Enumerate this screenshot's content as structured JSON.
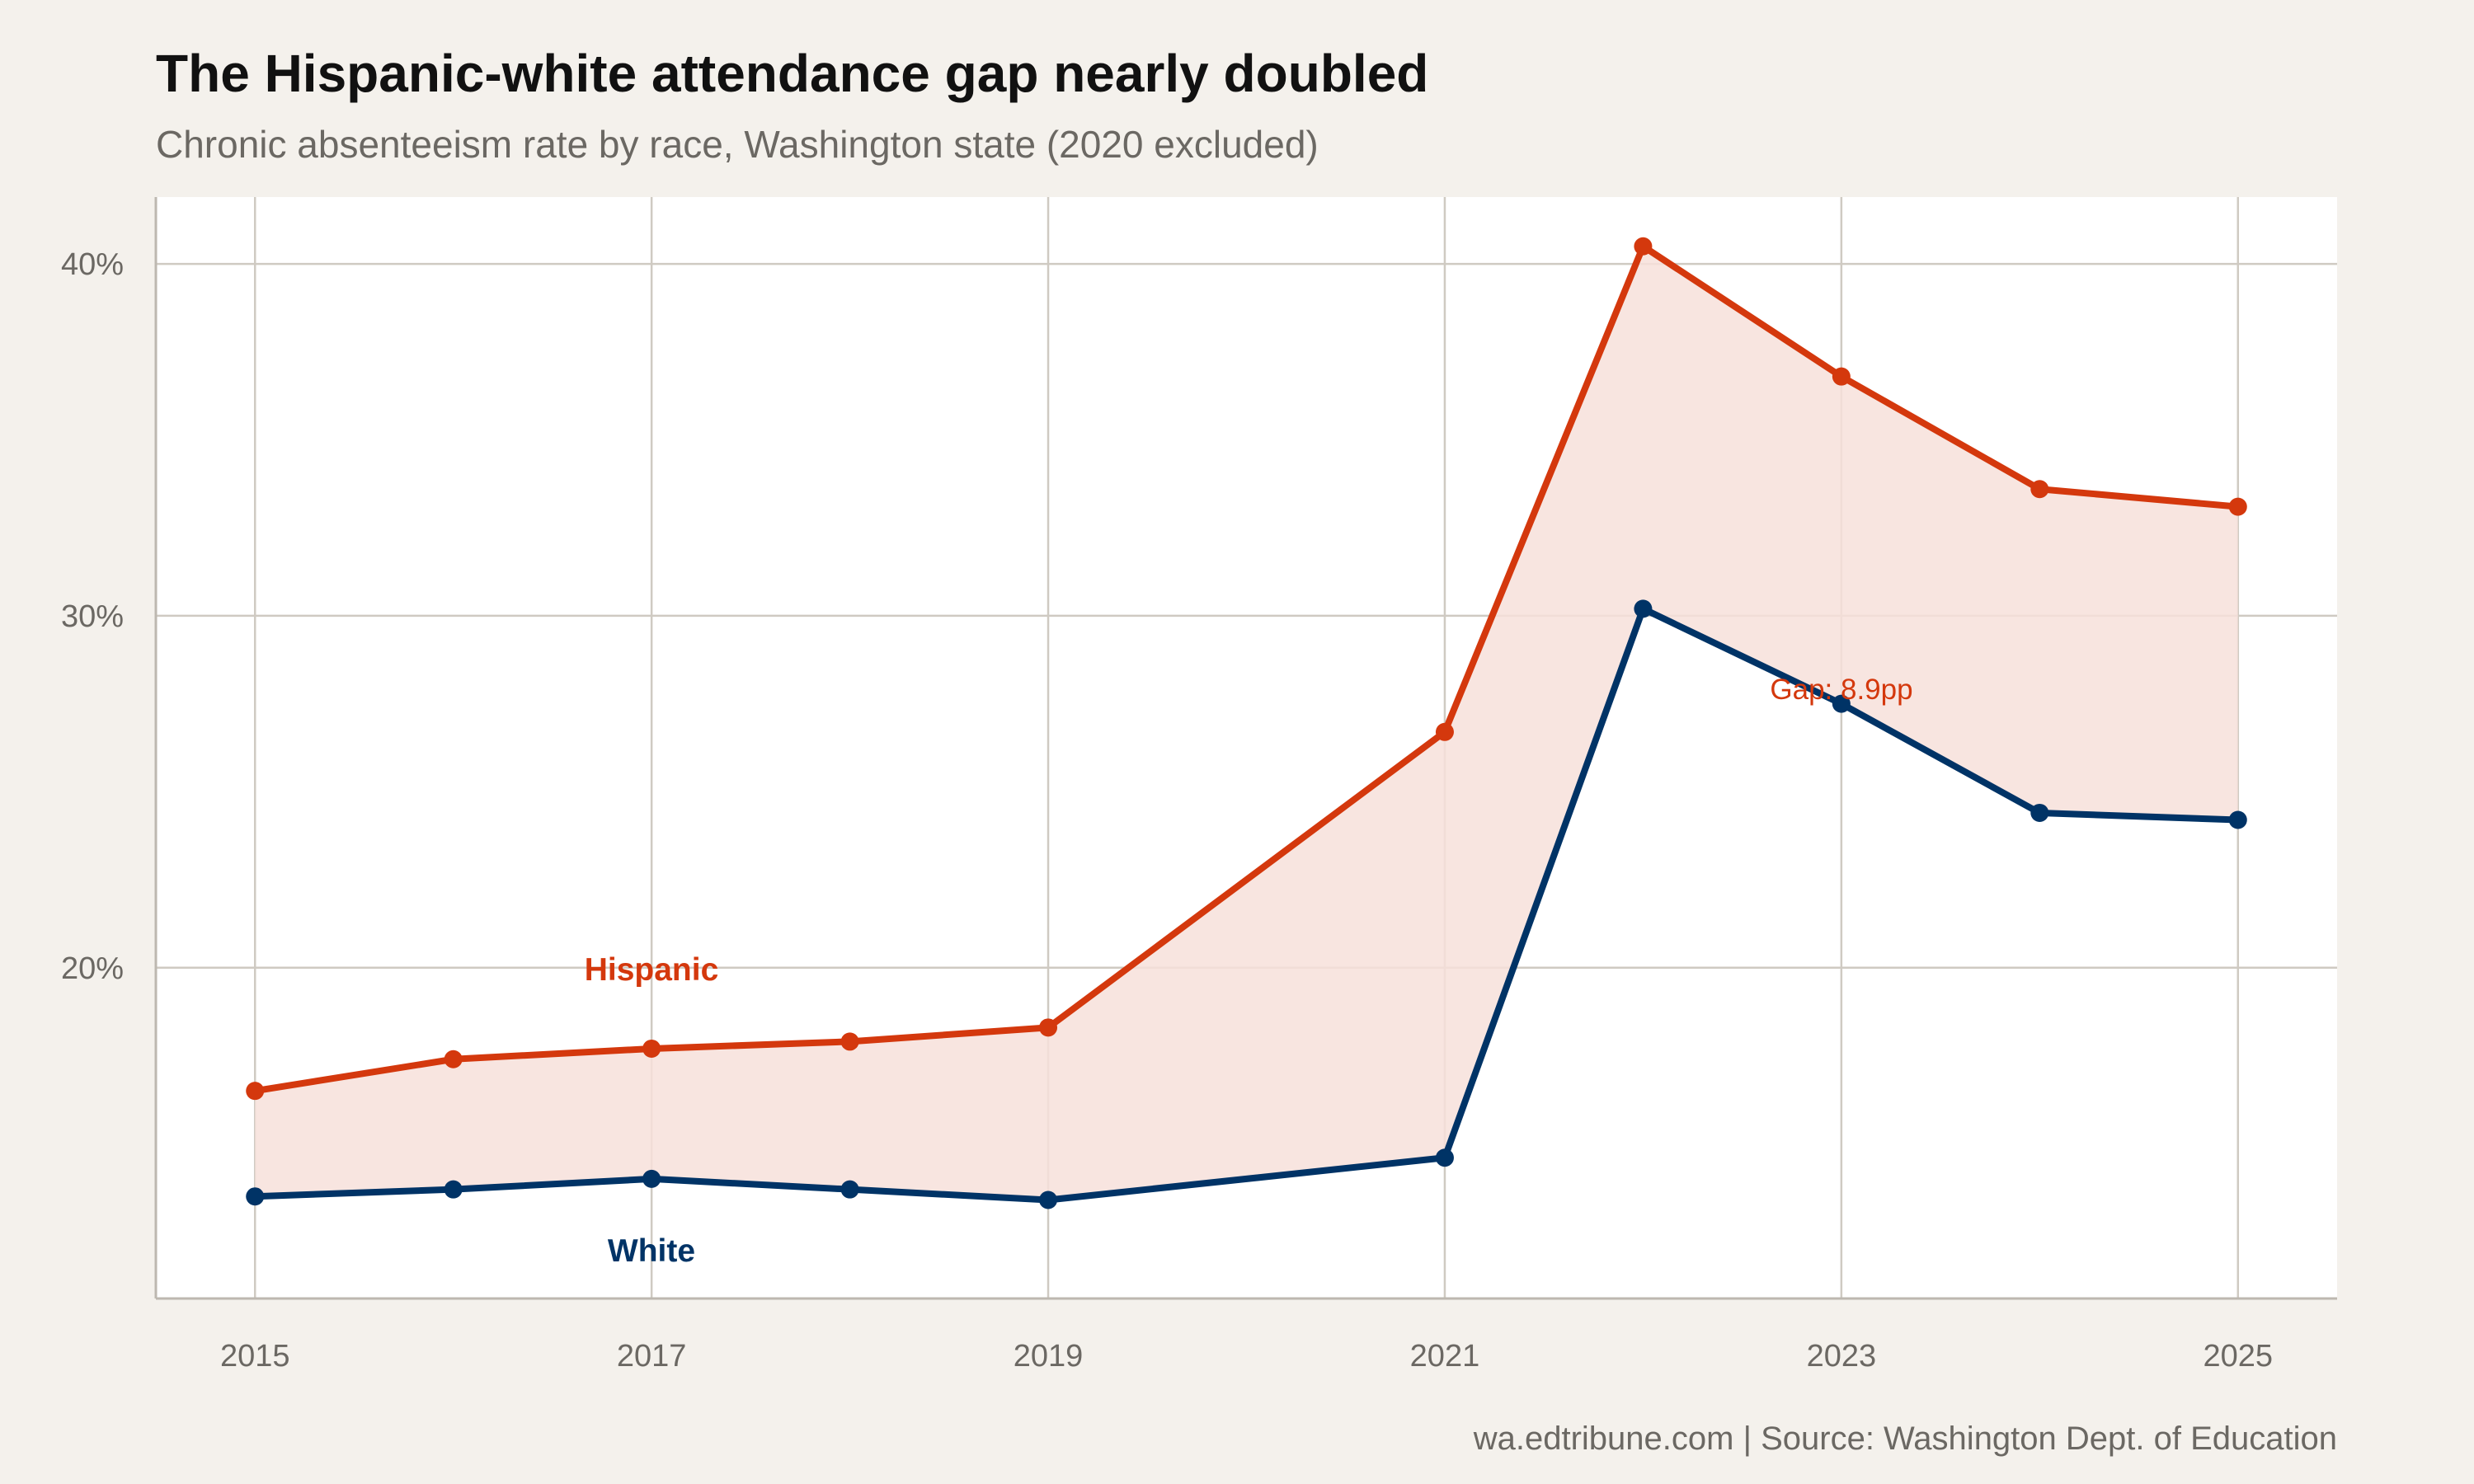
{
  "title": "The Hispanic-white attendance gap nearly doubled",
  "subtitle": "Chronic absenteeism rate by race, Washington state (2020 excluded)",
  "caption": "wa.edtribune.com | Source: Washington Dept. of Education",
  "chart_data": {
    "type": "line",
    "x": [
      2015,
      2016,
      2017,
      2018,
      2019,
      2021,
      2022,
      2023,
      2024,
      2025
    ],
    "series": [
      {
        "name": "Hispanic",
        "color": "#d4380d",
        "values": [
          16.5,
          17.4,
          17.7,
          17.9,
          18.3,
          26.7,
          40.5,
          36.8,
          33.6,
          33.1
        ]
      },
      {
        "name": "White",
        "color": "#003366",
        "values": [
          13.5,
          13.7,
          14.0,
          13.7,
          13.4,
          14.6,
          30.2,
          27.5,
          24.4,
          24.2
        ]
      }
    ],
    "gap_fill_color": "#f7e0da",
    "xlim": [
      2014.5,
      2025.5
    ],
    "ylim": [
      10.6,
      41.9
    ],
    "x_ticks": [
      "2015",
      "2017",
      "2019",
      "2021",
      "2023",
      "2025"
    ],
    "y_ticks": [
      "20%",
      "30%",
      "40%"
    ],
    "y_tick_values": [
      20,
      30,
      40
    ],
    "annotation": "Gap: 8.9pp",
    "grid": true,
    "legend": "direct labels"
  }
}
